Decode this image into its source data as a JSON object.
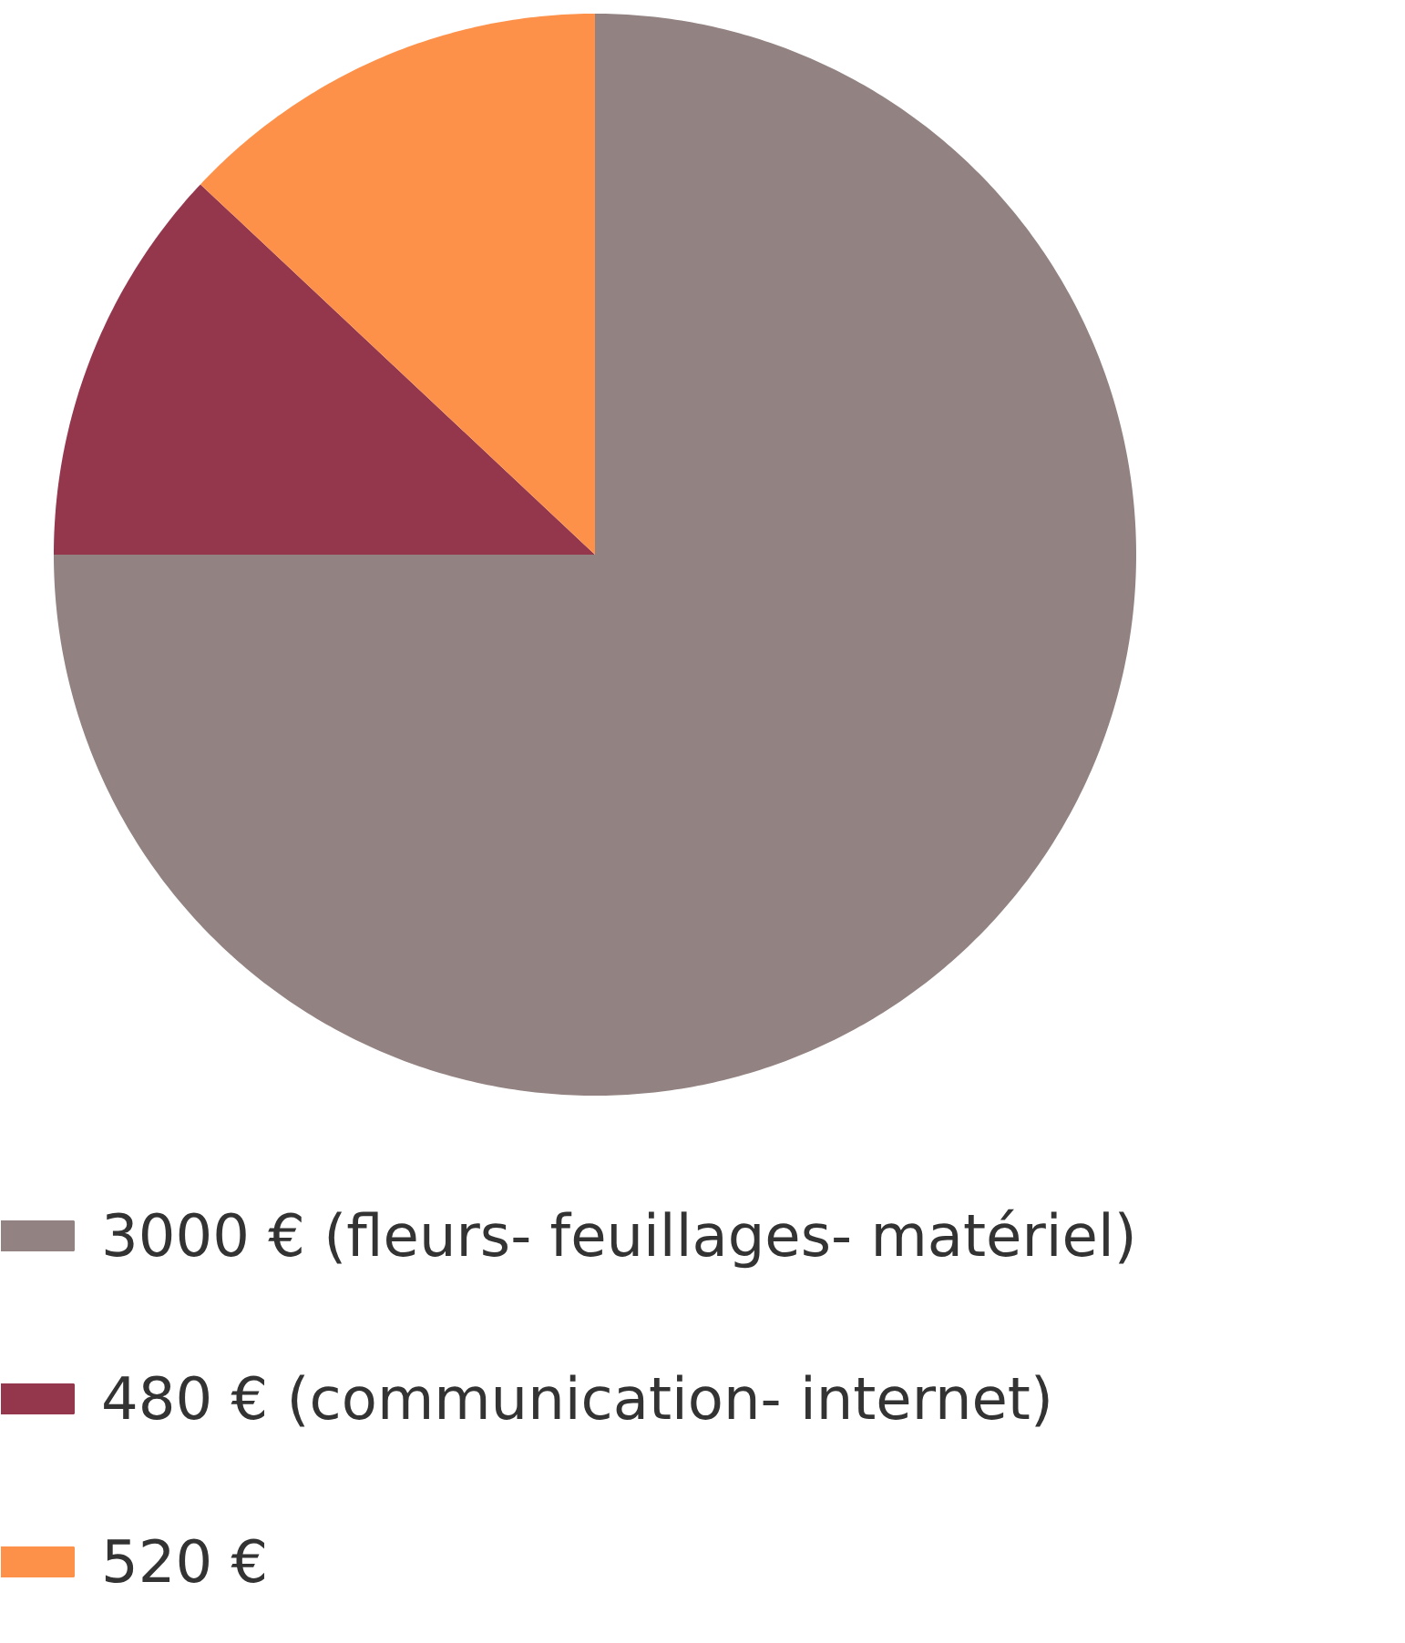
{
  "chart_data": {
    "type": "pie",
    "categories": [
      "3000 € (fleurs- feuillages- matériel)",
      "480 € (communication- internet)",
      "520 €"
    ],
    "values": [
      3000,
      480,
      520
    ],
    "colors": [
      "#928382",
      "#94374d",
      "#fe914a"
    ],
    "legend": "bottom"
  }
}
